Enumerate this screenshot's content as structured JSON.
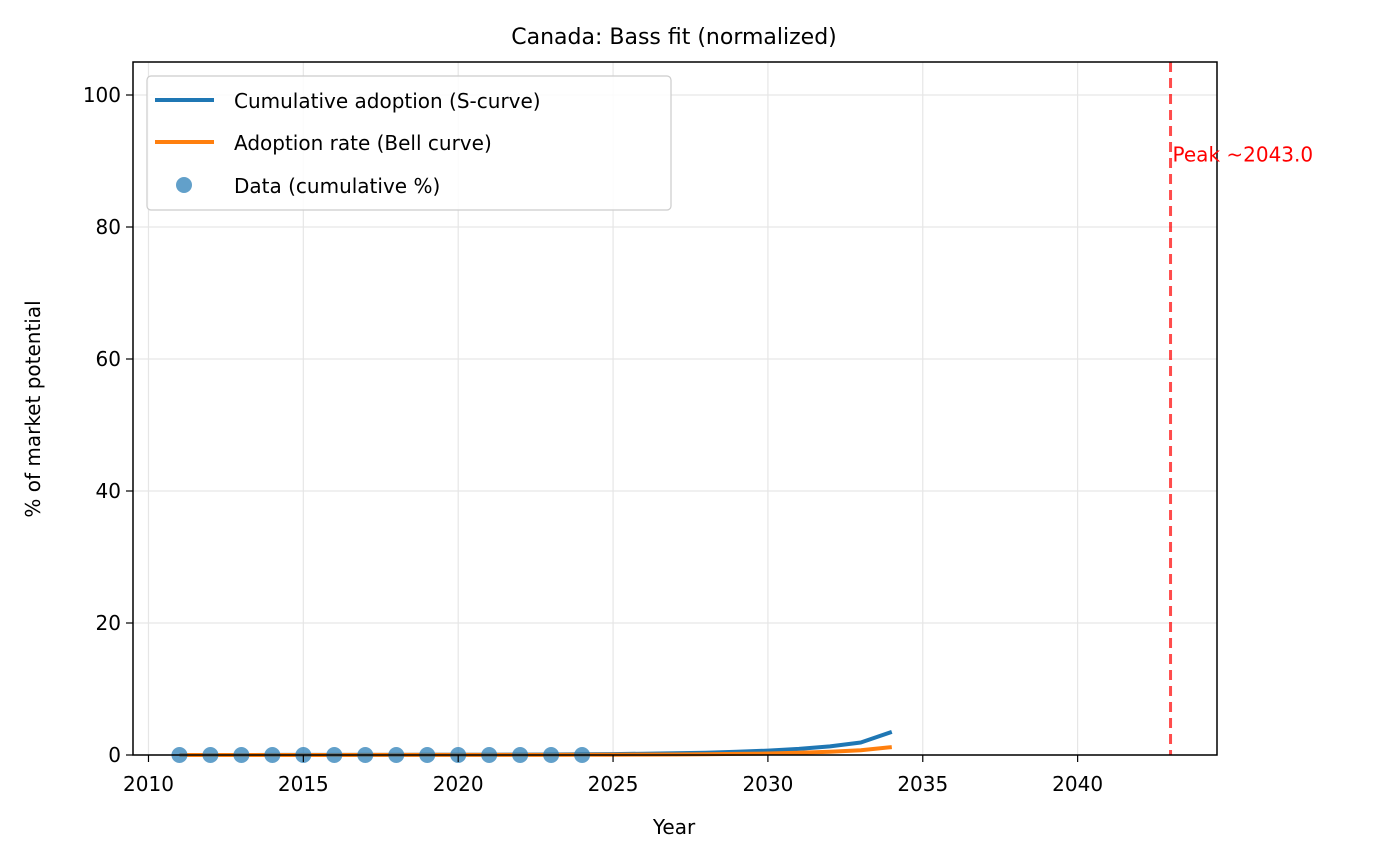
{
  "chart_data": {
    "type": "line",
    "title": "Canada: Bass fit (normalized)",
    "xlabel": "Year",
    "ylabel": "% of market potential",
    "xlim": [
      2009.5,
      2044.5
    ],
    "ylim": [
      0,
      105
    ],
    "xticks": [
      2010,
      2015,
      2020,
      2025,
      2030,
      2035,
      2040
    ],
    "yticks": [
      0,
      20,
      40,
      60,
      80,
      100
    ],
    "grid": true,
    "legend_position": "upper-left",
    "series": [
      {
        "name": "Cumulative adoption (S-curve)",
        "kind": "line",
        "color": "#1f77b4",
        "x": [
          2011,
          2012,
          2013,
          2014,
          2015,
          2016,
          2017,
          2018,
          2019,
          2020,
          2021,
          2022,
          2023,
          2024,
          2025,
          2026,
          2027,
          2028,
          2029,
          2030,
          2031,
          2032,
          2033,
          2034
        ],
        "values": [
          0.0,
          0.0,
          0.0,
          0.01,
          0.01,
          0.01,
          0.02,
          0.02,
          0.03,
          0.04,
          0.05,
          0.06,
          0.08,
          0.1,
          0.14,
          0.19,
          0.26,
          0.35,
          0.48,
          0.67,
          0.93,
          1.3,
          1.9,
          3.5
        ]
      },
      {
        "name": "Adoption rate (Bell curve)",
        "kind": "line",
        "color": "#ff7f0e",
        "x": [
          2011,
          2012,
          2013,
          2014,
          2015,
          2016,
          2017,
          2018,
          2019,
          2020,
          2021,
          2022,
          2023,
          2024,
          2025,
          2026,
          2027,
          2028,
          2029,
          2030,
          2031,
          2032,
          2033,
          2034
        ],
        "values": [
          0.0,
          0.0,
          0.0,
          0.0,
          0.0,
          0.0,
          0.01,
          0.01,
          0.01,
          0.01,
          0.01,
          0.02,
          0.02,
          0.03,
          0.04,
          0.06,
          0.08,
          0.11,
          0.16,
          0.23,
          0.33,
          0.48,
          0.72,
          1.2
        ]
      },
      {
        "name": "Data (cumulative %)",
        "kind": "scatter",
        "color": "#1f77b4",
        "x": [
          2011,
          2012,
          2013,
          2014,
          2015,
          2016,
          2017,
          2018,
          2019,
          2020,
          2021,
          2022,
          2023,
          2024
        ],
        "values": [
          0,
          0,
          0,
          0,
          0,
          0,
          0,
          0,
          0,
          0,
          0,
          0,
          0,
          0
        ]
      }
    ],
    "annotations": [
      {
        "type": "vline",
        "x": 2043.0,
        "color": "#ff0000",
        "style": "dashed",
        "label": "Peak ~2043.0",
        "label_y": 91
      }
    ]
  }
}
